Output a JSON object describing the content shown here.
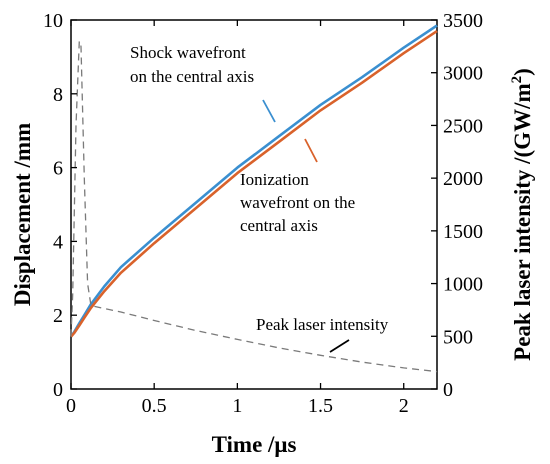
{
  "chart_data": {
    "type": "line",
    "xlabel": "Time /μs",
    "ylabel": "Displacement /mm",
    "y2label_main": "Peak laser intensity /(GW/m",
    "y2label_sup": "2",
    "y2label_close": ")",
    "xlim": [
      0,
      2.2
    ],
    "ylim": [
      0,
      10
    ],
    "y2lim": [
      0,
      3500
    ],
    "x_ticks": [
      0,
      0.5,
      1,
      1.5,
      2
    ],
    "x_tick_labels": [
      "0",
      "0.5",
      "1",
      "1.5",
      "2"
    ],
    "y_ticks": [
      0,
      2,
      4,
      6,
      8,
      10
    ],
    "y_tick_labels": [
      "0",
      "2",
      "4",
      "6",
      "8",
      "10"
    ],
    "y2_ticks": [
      0,
      500,
      1000,
      1500,
      2000,
      2500,
      3000,
      3500
    ],
    "y2_tick_labels": [
      "0",
      "500",
      "1000",
      "1500",
      "2000",
      "2500",
      "3000",
      "3500"
    ],
    "grid": false,
    "series": [
      {
        "name_lines": [
          "Shock wavefront",
          "on the central axis"
        ],
        "color": "#3a8fd0",
        "axis": "left",
        "x": [
          0,
          0.02,
          0.05,
          0.08,
          0.12,
          0.2,
          0.3,
          0.5,
          0.75,
          1.0,
          1.25,
          1.5,
          1.75,
          2.0,
          2.2
        ],
        "y": [
          1.42,
          1.55,
          1.78,
          2.0,
          2.3,
          2.78,
          3.3,
          4.1,
          5.05,
          6.0,
          6.85,
          7.7,
          8.45,
          9.25,
          9.85
        ]
      },
      {
        "name_lines": [
          "Ionization",
          "wavefront on the",
          "central axis"
        ],
        "color": "#d9622b",
        "axis": "left",
        "x": [
          0,
          0.02,
          0.05,
          0.08,
          0.12,
          0.2,
          0.3,
          0.5,
          0.75,
          1.0,
          1.25,
          1.5,
          1.75,
          2.0,
          2.2
        ],
        "y": [
          1.42,
          1.52,
          1.72,
          1.93,
          2.2,
          2.65,
          3.15,
          3.95,
          4.9,
          5.85,
          6.7,
          7.55,
          8.3,
          9.1,
          9.7
        ]
      },
      {
        "name_lines": [
          "Peak laser intensity"
        ],
        "color": "#7a7a7a",
        "dash": true,
        "axis": "right",
        "x": [
          0,
          0.01,
          0.03,
          0.05,
          0.06,
          0.08,
          0.1,
          0.12,
          0.3,
          0.5,
          0.75,
          1.0,
          1.25,
          1.5,
          1.75,
          2.0,
          2.2
        ],
        "y": [
          500,
          900,
          2500,
          3300,
          3250,
          2000,
          1000,
          790,
          730,
          650,
          555,
          470,
          390,
          320,
          255,
          200,
          165
        ]
      }
    ]
  }
}
